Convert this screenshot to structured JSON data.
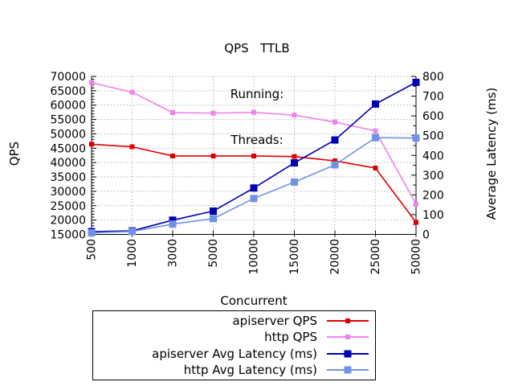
{
  "header": {
    "title": "QPS   TTLB",
    "subtitle1": "Running:",
    "subtitle2": "Threads:"
  },
  "chart_data": {
    "type": "line",
    "title": "QPS   TTLB",
    "categories": [
      "500",
      "1000",
      "3000",
      "5000",
      "10000",
      "15000",
      "20000",
      "25000",
      "50000"
    ],
    "x_axis": {
      "label": "Concurrent"
    },
    "left_axis": {
      "label": "QPS",
      "min": 15000,
      "max": 70000,
      "tick_step": 5000,
      "minor_step": 1000
    },
    "right_axis": {
      "label": "Average Latency (ms)",
      "min": 0,
      "max": 800,
      "tick_step": 100,
      "minor_step": 50
    },
    "grid": true,
    "grid_color": "#b3b3b3",
    "legend_position": "bottom",
    "series": [
      {
        "name": "apiserver QPS",
        "axis": "left",
        "color": "#dd0000",
        "marker": "square",
        "marker_size": 6,
        "values": [
          46400,
          45500,
          42300,
          42300,
          42300,
          42100,
          40600,
          38100,
          19200
        ]
      },
      {
        "name": "http QPS",
        "axis": "left",
        "color": "#ee82ee",
        "marker": "square",
        "marker_size": 6,
        "values": [
          67800,
          64500,
          57400,
          57200,
          57500,
          56500,
          54100,
          51000,
          25600
        ]
      },
      {
        "name": "apiserver Avg Latency (ms)",
        "axis": "right",
        "color": "#0000b4",
        "marker": "square",
        "marker_size": 9,
        "values": [
          14,
          18,
          72,
          118,
          235,
          362,
          478,
          660,
          770
        ]
      },
      {
        "name": "http Avg Latency (ms)",
        "axis": "right",
        "color": "#6f92e5",
        "marker": "square",
        "marker_size": 9,
        "values": [
          8,
          15,
          52,
          80,
          182,
          265,
          352,
          490,
          488
        ]
      }
    ]
  }
}
